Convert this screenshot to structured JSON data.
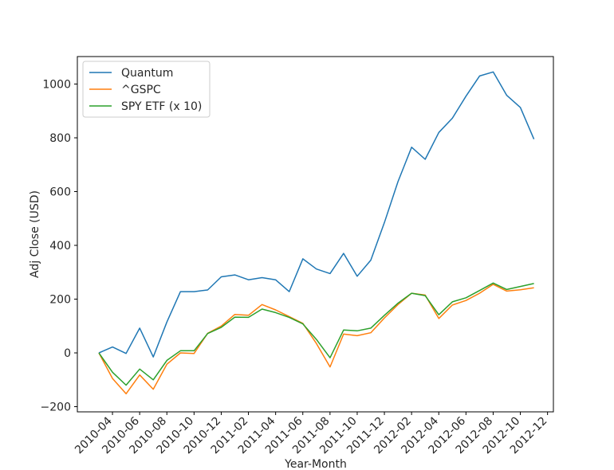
{
  "chart_data": {
    "type": "line",
    "title": "",
    "xlabel": "Year-Month",
    "ylabel": "Adj Close (USD)",
    "grid": false,
    "legend_position": "top-left",
    "ylim": [
      -215,
      1105
    ],
    "yticks": [
      -200,
      0,
      200,
      400,
      600,
      800,
      1000
    ],
    "x_tick_labels": [
      "2010-04",
      "2010-06",
      "2010-08",
      "2010-10",
      "2010-12",
      "2011-02",
      "2011-04",
      "2011-06",
      "2011-08",
      "2011-10",
      "2011-12",
      "2012-02",
      "2012-04",
      "2012-06",
      "2012-08",
      "2012-10",
      "2012-12"
    ],
    "x": [
      "2010-03",
      "2010-04",
      "2010-05",
      "2010-06",
      "2010-07",
      "2010-08",
      "2010-09",
      "2010-10",
      "2010-11",
      "2010-12",
      "2011-01",
      "2011-02",
      "2011-03",
      "2011-04",
      "2011-05",
      "2011-06",
      "2011-07",
      "2011-08",
      "2011-09",
      "2011-10",
      "2011-11",
      "2011-12",
      "2012-01",
      "2012-02",
      "2012-03",
      "2012-04",
      "2012-05",
      "2012-06",
      "2012-07",
      "2012-08",
      "2012-09",
      "2012-10",
      "2012-11"
    ],
    "series": [
      {
        "name": "Quantum",
        "color": "#1f77b4",
        "values": [
          0,
          22,
          -2,
          92,
          -15,
          115,
          228,
          228,
          234,
          283,
          290,
          272,
          280,
          272,
          228,
          350,
          312,
          295,
          370,
          285,
          345,
          485,
          637,
          765,
          720,
          820,
          873,
          955,
          1030,
          1045,
          958,
          913,
          795
        ]
      },
      {
        "name": "^GSPC",
        "color": "#ff7f0e",
        "values": [
          0,
          -95,
          -152,
          -82,
          -135,
          -42,
          0,
          -2,
          73,
          100,
          143,
          140,
          180,
          160,
          135,
          110,
          35,
          -52,
          70,
          64,
          75,
          130,
          180,
          222,
          215,
          128,
          178,
          195,
          222,
          255,
          230,
          235,
          242
        ]
      },
      {
        "name": "SPY ETF (x 10)",
        "color": "#2ca02c",
        "values": [
          0,
          -72,
          -120,
          -60,
          -100,
          -28,
          8,
          8,
          72,
          95,
          133,
          132,
          163,
          150,
          132,
          108,
          50,
          -18,
          85,
          82,
          92,
          140,
          185,
          222,
          213,
          142,
          190,
          205,
          232,
          260,
          236,
          247,
          258
        ]
      }
    ]
  }
}
